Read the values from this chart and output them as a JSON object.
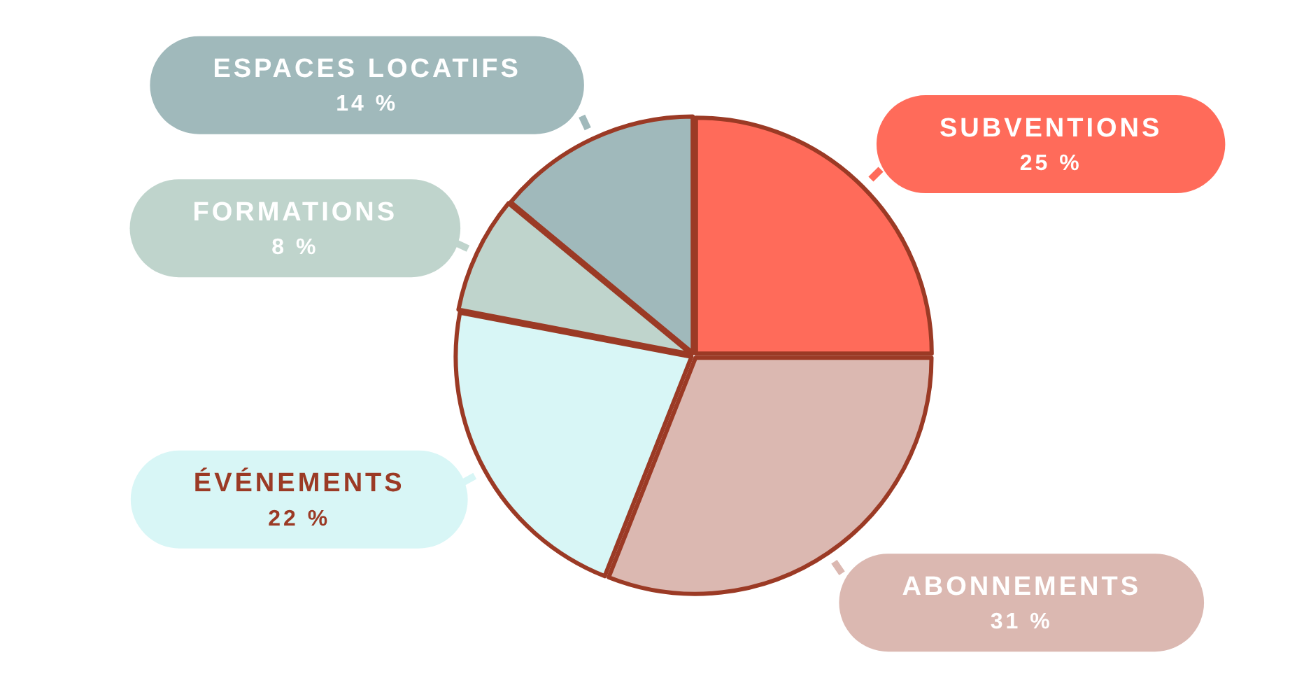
{
  "chart_data": {
    "type": "pie",
    "categories": [
      "SUBVENTIONS",
      "ABONNEMENTS",
      "ÉVÉNEMENTS",
      "FORMATIONS",
      "ESPACES LOCATIFS"
    ],
    "values": [
      25,
      31,
      22,
      8,
      14
    ],
    "value_labels": [
      "25 %",
      "31 %",
      "22 %",
      "8 %",
      "14 %"
    ],
    "colors": [
      "#ff6b5a",
      "#dbb8b1",
      "#d8f6f6",
      "#bfd4cc",
      "#a0b9bb"
    ]
  }
}
